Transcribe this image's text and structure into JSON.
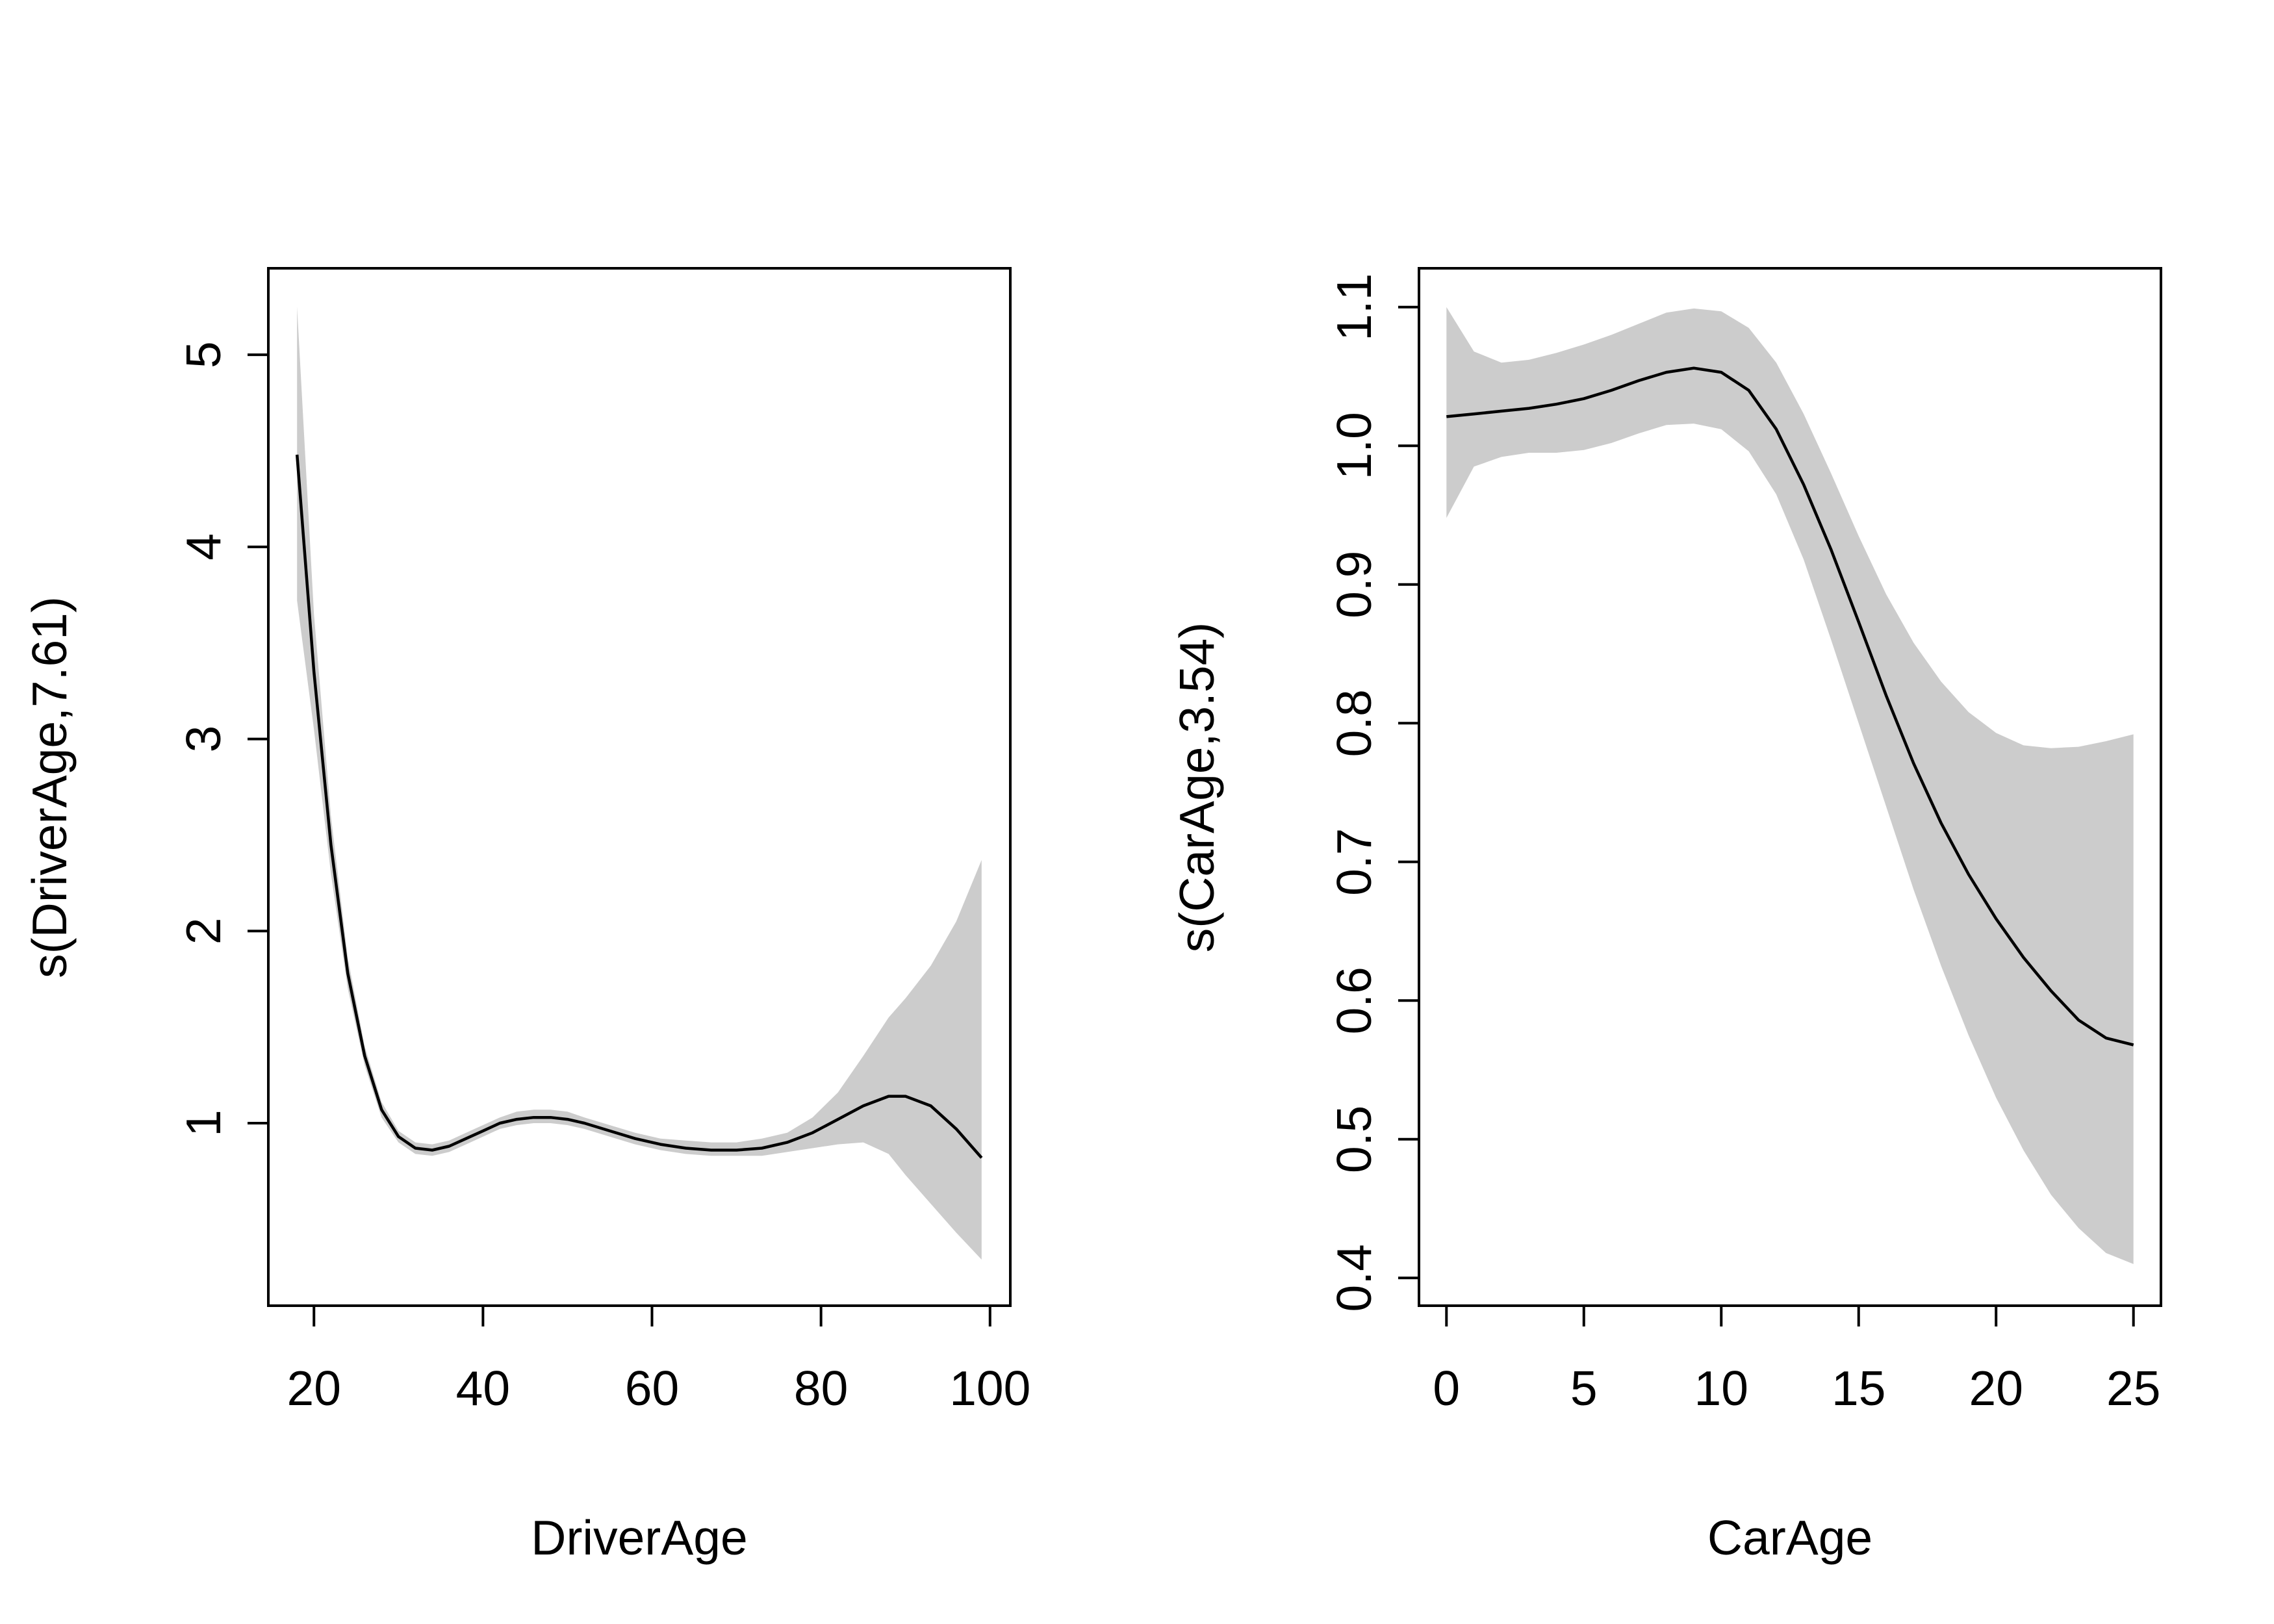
{
  "chart_data": [
    {
      "type": "line",
      "title": "",
      "xlabel": "DriverAge",
      "ylabel": "s(DriverAge,7.61)",
      "xlim": [
        14.6,
        102.4
      ],
      "ylim": [
        0.05,
        5.45
      ],
      "xticks": [
        20,
        40,
        60,
        80,
        100
      ],
      "yticks": [
        1,
        2,
        3,
        4,
        5
      ],
      "xtick_labels": [
        "20",
        "40",
        "60",
        "80",
        "100"
      ],
      "ytick_labels": [
        "1",
        "2",
        "3",
        "4",
        "5"
      ],
      "grid": false,
      "colors": {
        "fit": "#000000",
        "band": "#cccccc"
      },
      "series": [
        {
          "x": [
            18,
            20,
            22,
            24,
            26,
            28,
            30,
            32,
            34,
            36,
            38,
            40,
            42,
            44,
            46,
            48,
            50,
            52,
            55,
            58,
            61,
            64,
            67,
            70,
            73,
            76,
            79,
            82,
            85,
            88,
            90,
            93,
            96,
            99
          ],
          "y": [
            4.48,
            3.35,
            2.45,
            1.78,
            1.35,
            1.07,
            0.93,
            0.87,
            0.86,
            0.88,
            0.92,
            0.96,
            1.0,
            1.02,
            1.03,
            1.03,
            1.02,
            1.0,
            0.96,
            0.92,
            0.89,
            0.87,
            0.86,
            0.86,
            0.87,
            0.9,
            0.95,
            1.02,
            1.09,
            1.14,
            1.14,
            1.09,
            0.97,
            0.82
          ],
          "lower": [
            3.72,
            3.05,
            2.3,
            1.7,
            1.3,
            1.03,
            0.9,
            0.84,
            0.83,
            0.85,
            0.89,
            0.93,
            0.97,
            0.99,
            1.0,
            1.0,
            0.99,
            0.97,
            0.93,
            0.89,
            0.86,
            0.84,
            0.83,
            0.83,
            0.83,
            0.85,
            0.87,
            0.89,
            0.9,
            0.84,
            0.73,
            0.58,
            0.43,
            0.29
          ],
          "upper": [
            5.25,
            3.65,
            2.6,
            1.86,
            1.4,
            1.11,
            0.96,
            0.9,
            0.89,
            0.91,
            0.95,
            0.99,
            1.03,
            1.06,
            1.07,
            1.07,
            1.06,
            1.03,
            0.99,
            0.95,
            0.92,
            0.91,
            0.9,
            0.9,
            0.92,
            0.95,
            1.03,
            1.16,
            1.35,
            1.55,
            1.65,
            1.82,
            2.05,
            2.37
          ]
        }
      ]
    },
    {
      "type": "line",
      "title": "",
      "xlabel": "CarAge",
      "ylabel": "s(CarAge,3.54)",
      "xlim": [
        -1.0,
        26.0
      ],
      "ylim": [
        0.38,
        1.128
      ],
      "xticks": [
        0,
        5,
        10,
        15,
        20,
        25
      ],
      "yticks": [
        0.4,
        0.5,
        0.6,
        0.7,
        0.8,
        0.9,
        1.0,
        1.1
      ],
      "xtick_labels": [
        "0",
        "5",
        "10",
        "15",
        "20",
        "25"
      ],
      "ytick_labels": [
        "0.4",
        "0.5",
        "0.6",
        "0.7",
        "0.8",
        "0.9",
        "1.0",
        "1.1"
      ],
      "grid": false,
      "colors": {
        "fit": "#000000",
        "band": "#cccccc"
      },
      "series": [
        {
          "x": [
            0,
            1,
            2,
            3,
            4,
            5,
            6,
            7,
            8,
            9,
            10,
            11,
            12,
            13,
            14,
            15,
            16,
            17,
            18,
            19,
            20,
            21,
            22,
            23,
            24,
            25
          ],
          "y": [
            1.021,
            1.023,
            1.025,
            1.027,
            1.03,
            1.034,
            1.04,
            1.047,
            1.053,
            1.056,
            1.053,
            1.04,
            1.012,
            0.972,
            0.925,
            0.873,
            0.82,
            0.771,
            0.728,
            0.691,
            0.659,
            0.631,
            0.607,
            0.586,
            0.573,
            0.568
          ],
          "lower": [
            0.948,
            0.985,
            0.992,
            0.995,
            0.995,
            0.997,
            1.002,
            1.009,
            1.015,
            1.016,
            1.012,
            0.996,
            0.965,
            0.918,
            0.86,
            0.8,
            0.74,
            0.68,
            0.625,
            0.575,
            0.53,
            0.492,
            0.46,
            0.436,
            0.418,
            0.41
          ],
          "upper": [
            1.1,
            1.068,
            1.06,
            1.062,
            1.067,
            1.073,
            1.08,
            1.088,
            1.096,
            1.099,
            1.097,
            1.085,
            1.06,
            1.023,
            0.98,
            0.935,
            0.893,
            0.858,
            0.83,
            0.808,
            0.793,
            0.784,
            0.782,
            0.783,
            0.787,
            0.792
          ]
        }
      ]
    }
  ]
}
